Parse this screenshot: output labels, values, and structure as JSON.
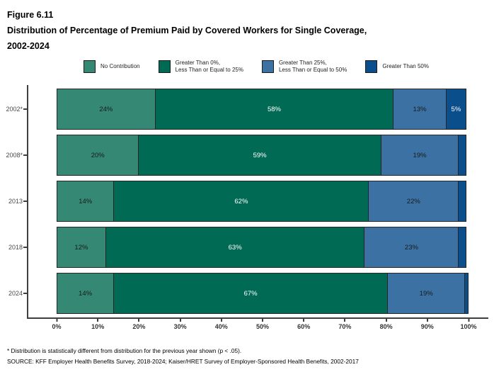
{
  "figure_label": "Figure 6.11",
  "title_line1": "Distribution of Percentage of Premium Paid by Covered Workers for Single Coverage,",
  "title_line2": "2002-2024",
  "legend": [
    {
      "label": "No Contribution",
      "color": "#358874"
    },
    {
      "label": "Greater Than 0%,\nLess Than or Equal to 25%",
      "color": "#016A55"
    },
    {
      "label": "Greater Than 25%,\nLess Than or Equal to 50%",
      "color": "#3B72A3"
    },
    {
      "label": "Greater Than 50%",
      "color": "#0B4E8C"
    }
  ],
  "chart_data": {
    "type": "bar",
    "orientation": "horizontal-stacked",
    "title": "Distribution of Percentage of Premium Paid by Covered Workers for Single Coverage, 2002-2024",
    "categories": [
      "2002*",
      "2008*",
      "2013",
      "2018",
      "2024"
    ],
    "series": [
      {
        "name": "No Contribution",
        "color": "#358874",
        "label_color": "#1a1a1a",
        "values": [
          24,
          20,
          14,
          12,
          14
        ],
        "labels": [
          "24%",
          "20%",
          "14%",
          "12%",
          "14%"
        ]
      },
      {
        "name": "Greater Than 0%, Less Than or Equal to 25%",
        "color": "#016A55",
        "label_color": "#ffffff",
        "values": [
          58,
          59,
          62,
          63,
          67
        ],
        "labels": [
          "58%",
          "59%",
          "62%",
          "63%",
          "67%"
        ]
      },
      {
        "name": "Greater Than 25%, Less Than or Equal to 50%",
        "color": "#3B72A3",
        "label_color": "#1a1a1a",
        "values": [
          13,
          19,
          22,
          23,
          19
        ],
        "labels": [
          "13%",
          "19%",
          "22%",
          "23%",
          "19%"
        ]
      },
      {
        "name": "Greater Than 50%",
        "color": "#0B4E8C",
        "label_color": "#ffffff",
        "values": [
          5,
          2,
          2,
          2,
          1
        ],
        "labels": [
          "5%",
          "",
          "",
          "",
          ""
        ]
      }
    ],
    "x_ticks": [
      "0%",
      "10%",
      "20%",
      "30%",
      "40%",
      "50%",
      "60%",
      "70%",
      "80%",
      "90%",
      "100%"
    ],
    "xlim": [
      0,
      100
    ],
    "legend_position": "top",
    "grid": false
  },
  "footnotes": {
    "note1": "* Distribution is statistically different from distribution for the previous year shown (p < .05).",
    "note2": "SOURCE: KFF Employer Health Benefits Survey, 2018-2024; Kaiser/HRET Survey of Employer-Sponsored Health Benefits, 2002-2017"
  }
}
